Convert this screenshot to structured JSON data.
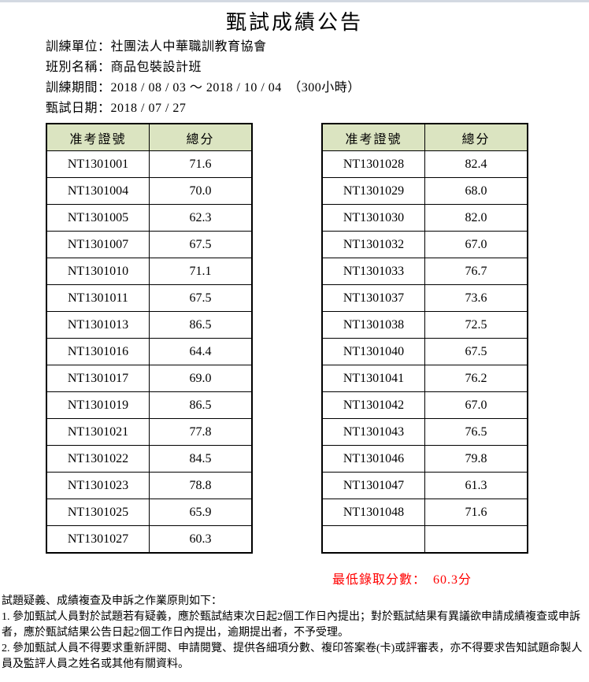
{
  "header": {
    "title": "甄試成績公告"
  },
  "info": {
    "lines": [
      "訓練單位：社團法人中華職訓教育協會",
      "班別名稱：商品包裝設計班",
      "訓練期間：2018 / 08 / 03 ～ 2018 / 10 / 04　（300小時）",
      "甄試日期：2018 / 07 / 27"
    ]
  },
  "score_tables": {
    "columns": [
      "准考證號",
      "總分"
    ],
    "left": {
      "rows": [
        [
          "NT1301001",
          "71.6"
        ],
        [
          "NT1301004",
          "70.0"
        ],
        [
          "NT1301005",
          "62.3"
        ],
        [
          "NT1301007",
          "67.5"
        ],
        [
          "NT1301010",
          "71.1"
        ],
        [
          "NT1301011",
          "67.5"
        ],
        [
          "NT1301013",
          "86.5"
        ],
        [
          "NT1301016",
          "64.4"
        ],
        [
          "NT1301017",
          "69.0"
        ],
        [
          "NT1301019",
          "86.5"
        ],
        [
          "NT1301021",
          "77.8"
        ],
        [
          "NT1301022",
          "84.5"
        ],
        [
          "NT1301023",
          "78.8"
        ],
        [
          "NT1301025",
          "65.9"
        ],
        [
          "NT1301027",
          "60.3"
        ]
      ]
    },
    "right": {
      "rows": [
        [
          "NT1301028",
          "82.4"
        ],
        [
          "NT1301029",
          "68.0"
        ],
        [
          "NT1301030",
          "82.0"
        ],
        [
          "NT1301032",
          "67.0"
        ],
        [
          "NT1301033",
          "76.7"
        ],
        [
          "NT1301037",
          "73.6"
        ],
        [
          "NT1301038",
          "72.5"
        ],
        [
          "NT1301040",
          "67.5"
        ],
        [
          "NT1301041",
          "76.2"
        ],
        [
          "NT1301042",
          "67.0"
        ],
        [
          "NT1301043",
          "76.5"
        ],
        [
          "NT1301046",
          "79.8"
        ],
        [
          "NT1301047",
          "61.3"
        ],
        [
          "NT1301048",
          "71.6"
        ],
        [
          "",
          ""
        ]
      ]
    }
  },
  "min_score": {
    "label": "最低錄取分數：",
    "value": "60.3分"
  },
  "notes": {
    "heading": "試題疑義、成績複查及申訴之作業原則如下：",
    "items": [
      "1.  參加甄試人員對於試題若有疑義，應於甄試結束次日起2個工作日內提出；對於甄試結果有異議欲申請成績複查或申訴者，應於甄試結果公告日起2個工作日內提出，逾期提出者，不予受理。",
      "2.  參加甄試人員不得要求重新評閱、申請閱覽、提供各細項分數、複印答案卷(卡)或評審表，亦不得要求告知試題命製人員及監評人員之姓名或其他有關資料。"
    ]
  },
  "colors": {
    "table_header_bg": "#dbe4c1",
    "accent_red": "#ff0000",
    "top_edge_strip": "#d3d9e2",
    "border": "#000000"
  }
}
